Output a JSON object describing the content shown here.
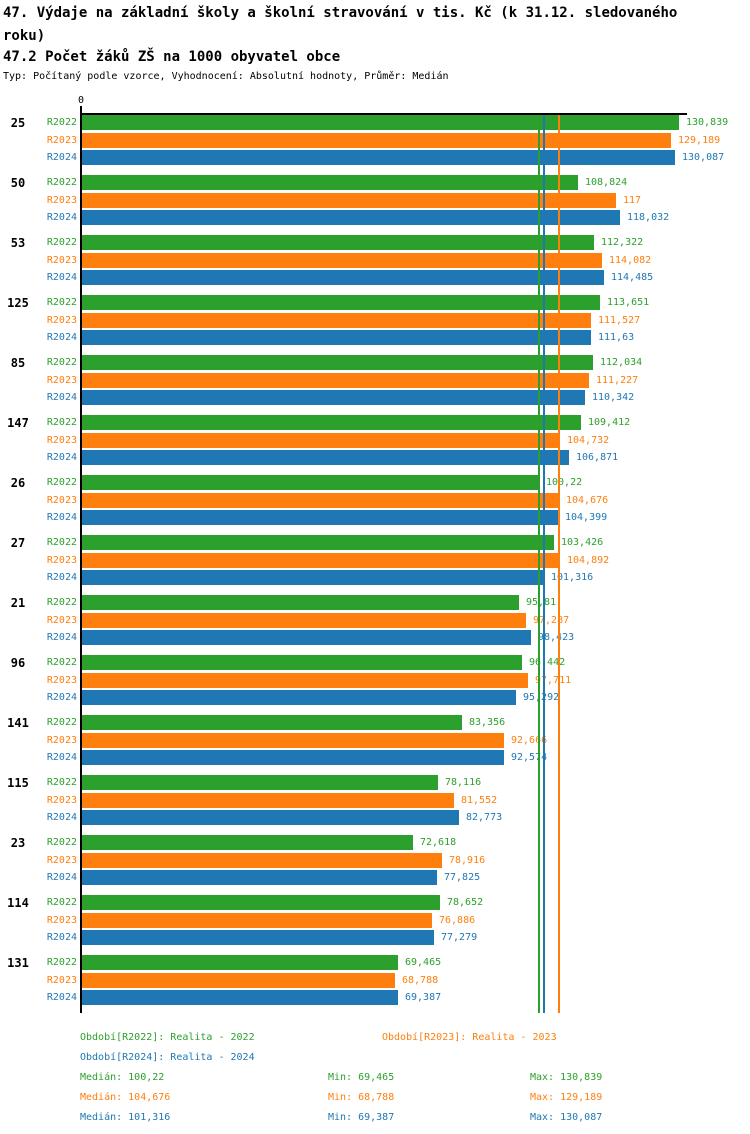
{
  "header": {
    "title": "47. Výdaje na základní školy a školní stravování v tis. Kč (k 31.12. sledovaného roku)",
    "subtitle": "47.2 Počet žáků ZŠ na 1000 obyvatel obce",
    "meta": "Typ: Počítaný podle vzorce, Vyhodnocení: Absolutní hodnoty, Průměr: Medián"
  },
  "colors": {
    "r2022": "#2ca02c",
    "r2023": "#ff7f0e",
    "r2024": "#1f77b4",
    "axis": "#000000",
    "background": "#ffffff"
  },
  "chart_data": {
    "type": "bar",
    "orientation": "horizontal",
    "title": "47. Výdaje na základní školy a školní stravování v tis. Kč (k 31.12. sledovaného roku)",
    "subtitle": "47.2 Počet žáků ZŠ na 1000 obyvatel obce",
    "x_axis_zero_label": "0",
    "xlim": [
      0,
      133
    ],
    "grid": false,
    "value_labels_shown": true,
    "legend_position": "bottom",
    "categories": [
      "25",
      "50",
      "53",
      "125",
      "85",
      "147",
      "26",
      "27",
      "21",
      "96",
      "141",
      "115",
      "23",
      "114",
      "131"
    ],
    "series": [
      {
        "name": "R2022",
        "label": "Realita - 2022",
        "color": "#2ca02c",
        "values": [
          130.839,
          108.824,
          112.322,
          113.651,
          112.034,
          109.412,
          100.22,
          103.426,
          95.81,
          96.442,
          83.356,
          78.116,
          72.618,
          78.652,
          69.465
        ],
        "display": [
          "130,839",
          "108,824",
          "112,322",
          "113,651",
          "112,034",
          "109,412",
          "100,22",
          "103,426",
          "95,81",
          "96,442",
          "83,356",
          "78,116",
          "72,618",
          "78,652",
          "69,465"
        ]
      },
      {
        "name": "R2023",
        "label": "Realita - 2023",
        "color": "#ff7f0e",
        "values": [
          129.189,
          117,
          114.082,
          111.527,
          111.227,
          104.732,
          104.676,
          104.892,
          97.287,
          97.711,
          92.666,
          81.552,
          78.916,
          76.886,
          68.788
        ],
        "display": [
          "129,189",
          "117",
          "114,082",
          "111,527",
          "111,227",
          "104,732",
          "104,676",
          "104,892",
          "97,287",
          "97,711",
          "92,666",
          "81,552",
          "78,916",
          "76,886",
          "68,788"
        ]
      },
      {
        "name": "R2024",
        "label": "Realita - 2024",
        "color": "#1f77b4",
        "values": [
          130.087,
          118.032,
          114.485,
          111.63,
          110.342,
          106.871,
          104.399,
          101.316,
          98.423,
          95.292,
          92.574,
          82.773,
          77.825,
          77.279,
          69.387
        ],
        "display": [
          "130,087",
          "118,032",
          "114,485",
          "111,63",
          "110,342",
          "106,871",
          "104,399",
          "101,316",
          "98,423",
          "95,292",
          "92,574",
          "82,773",
          "77,825",
          "77,279",
          "69,387"
        ]
      }
    ],
    "median_lines": [
      {
        "series": "R2022",
        "value": 100.22,
        "color": "#2ca02c"
      },
      {
        "series": "R2024",
        "value": 101.316,
        "color": "#1f77b4"
      },
      {
        "series": "R2023",
        "value": 104.676,
        "color": "#ff7f0e"
      }
    ]
  },
  "legend": {
    "items": [
      {
        "label": "Období[R2022]: Realita - 2022",
        "color": "#2ca02c"
      },
      {
        "label": "Období[R2023]: Realita - 2023",
        "color": "#ff7f0e"
      },
      {
        "label": "Období[R2024]: Realita - 2024",
        "color": "#1f77b4"
      }
    ]
  },
  "stats": {
    "rows": [
      {
        "series": "R2022",
        "color": "#2ca02c",
        "median": "Medián: 100,22",
        "min": "Min: 69,465",
        "max": "Max: 130,839"
      },
      {
        "series": "R2023",
        "color": "#ff7f0e",
        "median": "Medián: 104,676",
        "min": "Min: 68,788",
        "max": "Max: 129,189"
      },
      {
        "series": "R2024",
        "color": "#1f77b4",
        "median": "Medián: 101,316",
        "min": "Min: 69,387",
        "max": "Max: 130,087"
      }
    ]
  }
}
